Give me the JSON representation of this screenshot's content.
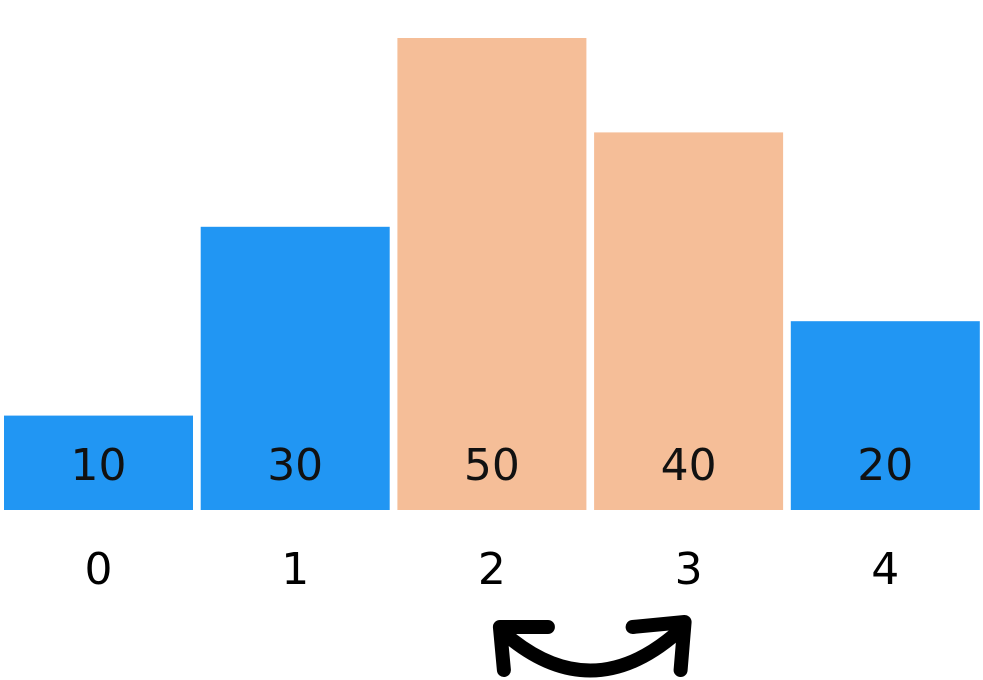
{
  "diagram": {
    "colors": {
      "default": "#2196f3",
      "compared": "#f5be98",
      "text": "#111111",
      "arrow": "#000000"
    },
    "bars": [
      {
        "index_label": "0",
        "value": 10,
        "value_label": "10",
        "state": "default"
      },
      {
        "index_label": "1",
        "value": 30,
        "value_label": "30",
        "state": "default"
      },
      {
        "index_label": "2",
        "value": 50,
        "value_label": "50",
        "state": "compared"
      },
      {
        "index_label": "3",
        "value": 40,
        "value_label": "40",
        "state": "compared"
      },
      {
        "index_label": "4",
        "value": 20,
        "value_label": "20",
        "state": "default"
      }
    ],
    "swap_arrow": {
      "from_index": 2,
      "to_index": 3,
      "icon": "swap-arrow-icon"
    }
  }
}
